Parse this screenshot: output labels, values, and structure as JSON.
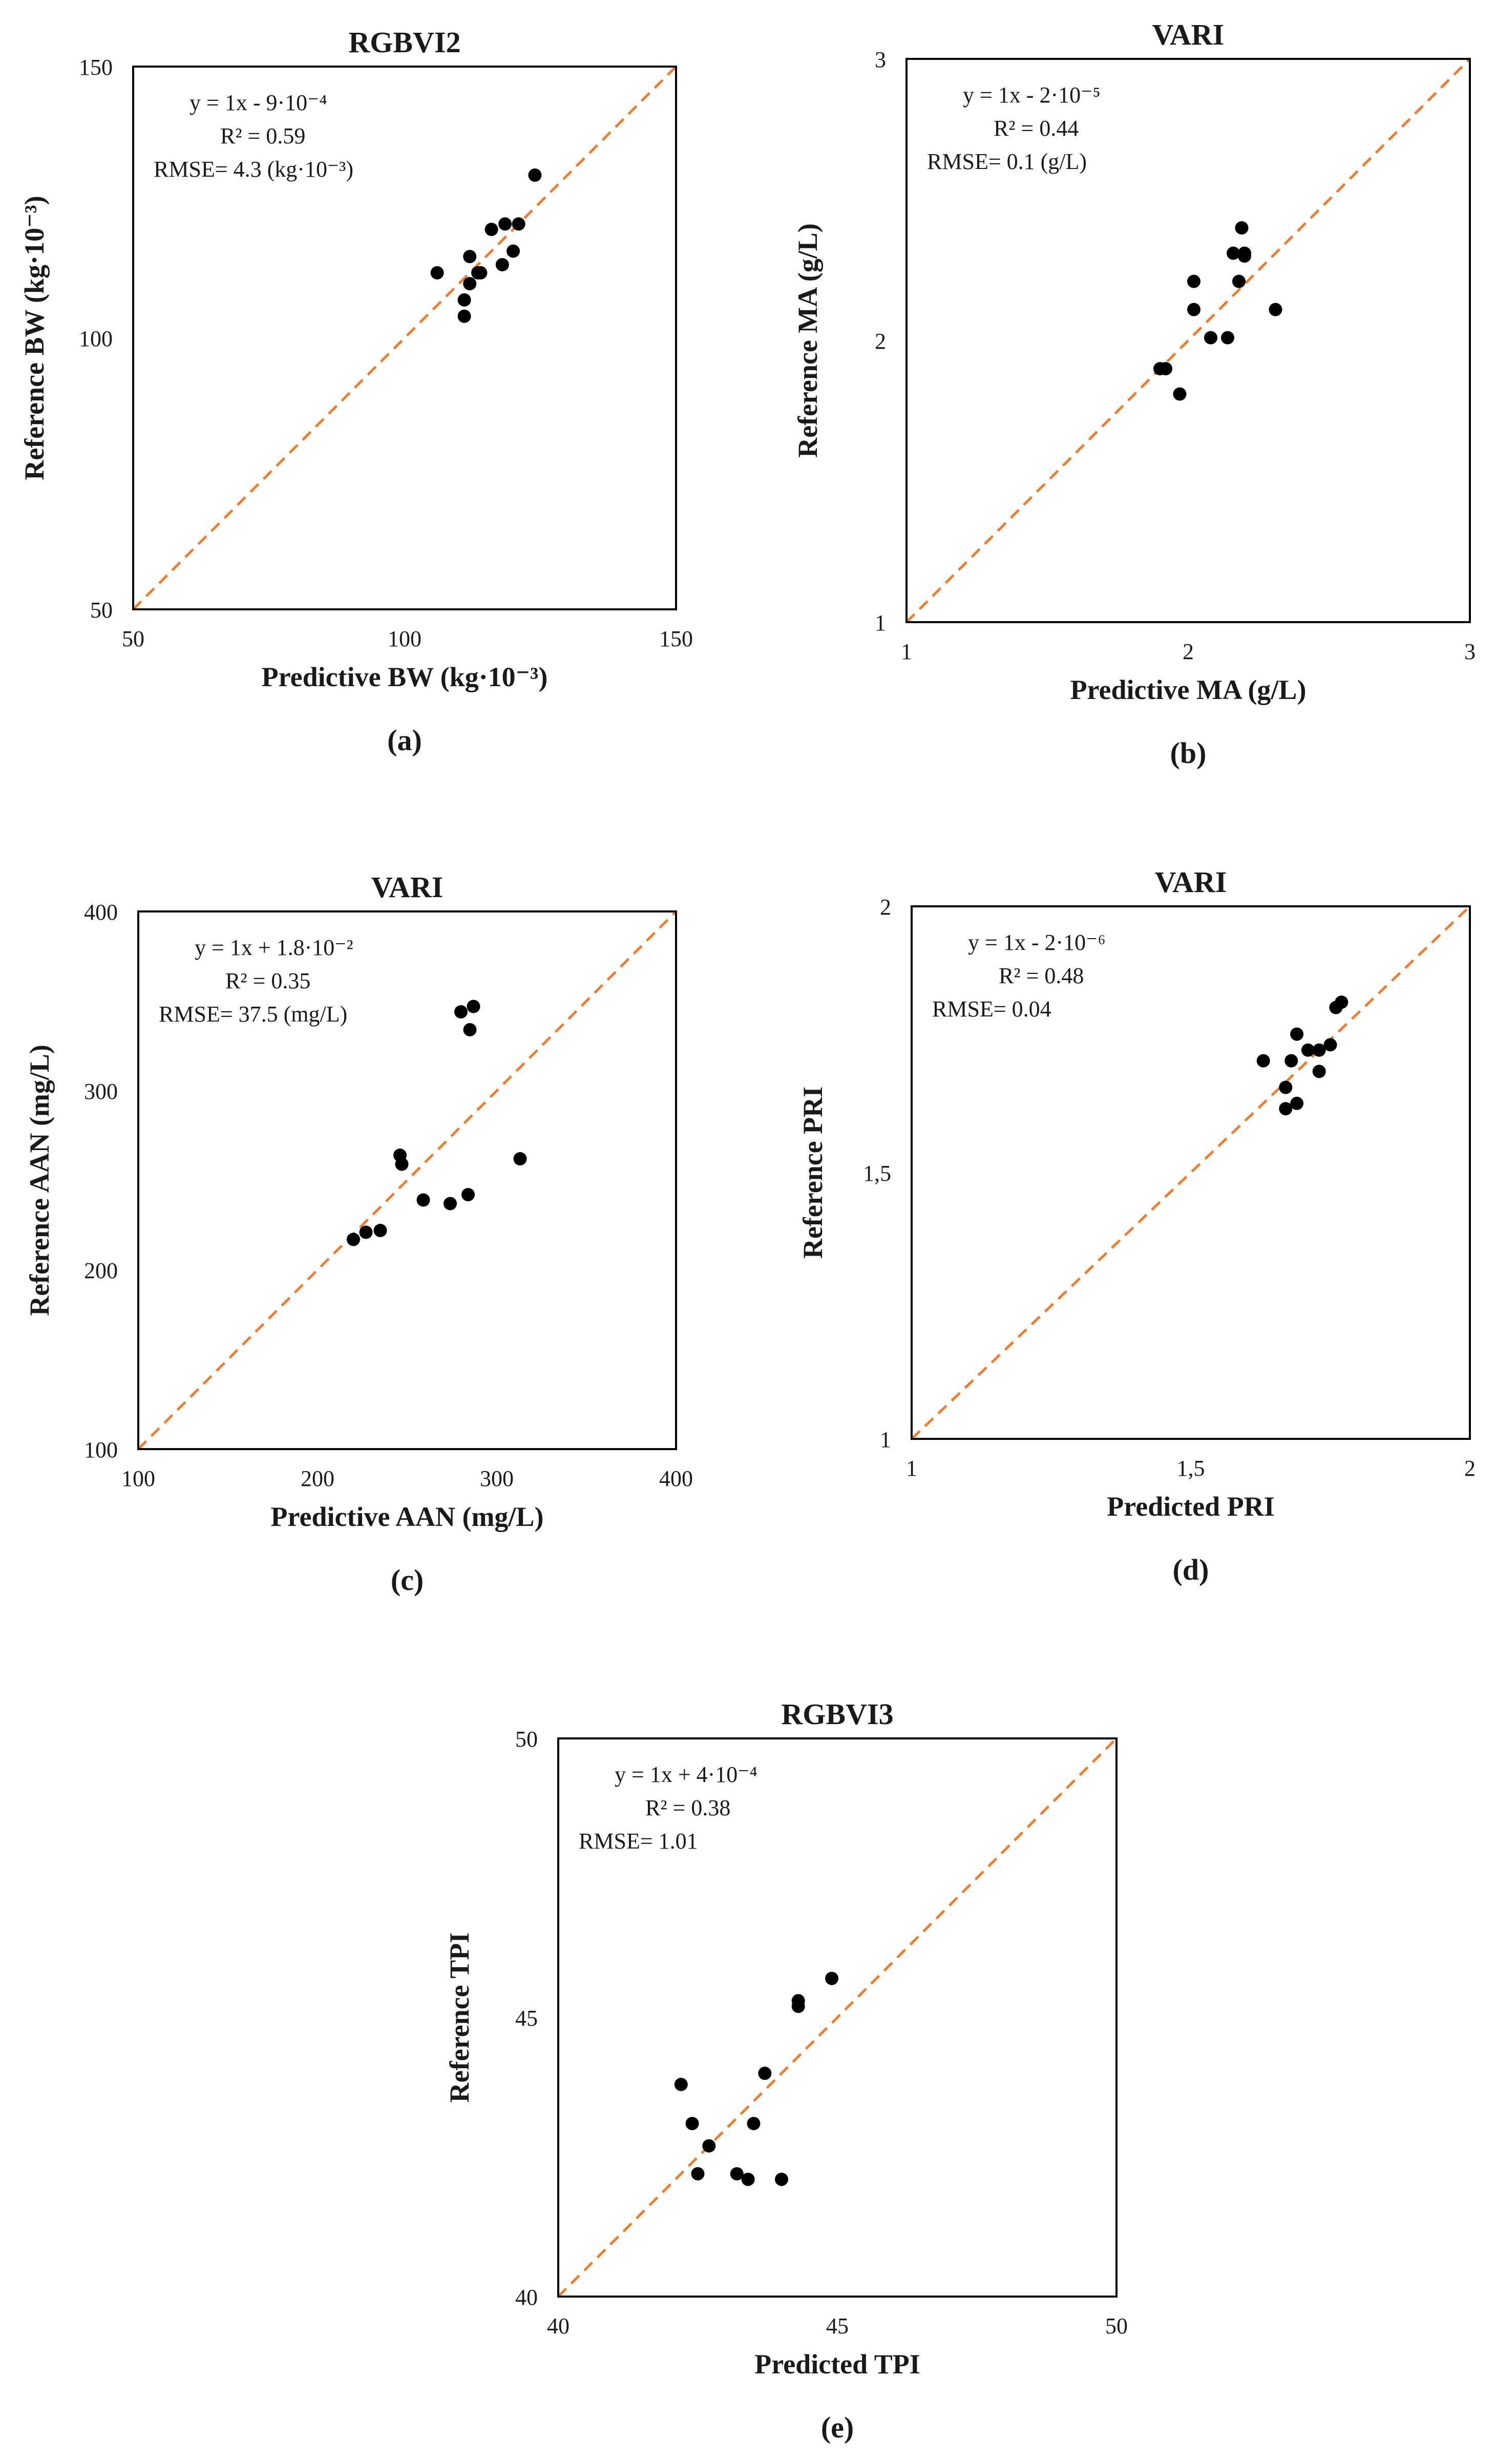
{
  "colors": {
    "reference_line": "#ed7d31",
    "points": "#000000",
    "frame": "#000000"
  },
  "chart_data": [
    {
      "type": "scatter",
      "panel": "(a)",
      "title": "RGBVI2",
      "xlabel": "Predictive BW (kg·10⁻³)",
      "ylabel": "Reference BW (kg·10⁻³)",
      "xlim": [
        50,
        150
      ],
      "ylim": [
        50,
        150
      ],
      "xticks": [
        "50",
        "100",
        "150"
      ],
      "yticks": [
        "50",
        "100",
        "150"
      ],
      "annotations": [
        "y = 1x - 9·10⁻⁴",
        "R² = 0.59",
        "RMSE= 4.3 (kg·10⁻³)"
      ],
      "x": [
        106,
        111,
        111,
        112,
        112,
        113.5,
        114,
        116,
        118,
        118.5,
        120,
        121,
        124
      ],
      "y": [
        112,
        104,
        107,
        110,
        115,
        112,
        112,
        120,
        113.5,
        121,
        116,
        121,
        130
      ]
    },
    {
      "type": "scatter",
      "panel": "(b)",
      "title": "VARI",
      "xlabel": "Predictive MA (g/L)",
      "ylabel": "Reference MA (g/L)",
      "xlim": [
        1,
        3
      ],
      "ylim": [
        1,
        3
      ],
      "xticks": [
        "1",
        "2",
        "3"
      ],
      "yticks": [
        "1",
        "2",
        "3"
      ],
      "annotations": [
        "y = 1x - 2·10⁻⁵",
        "R² = 0.44",
        "RMSE= 0.1 (g/L)"
      ],
      "x": [
        1.9,
        1.92,
        1.97,
        2.02,
        2.02,
        2.08,
        2.14,
        2.16,
        2.18,
        2.19,
        2.2,
        2.2,
        2.31
      ],
      "y": [
        1.9,
        1.9,
        1.81,
        2.11,
        2.21,
        2.01,
        2.01,
        2.31,
        2.21,
        2.4,
        2.31,
        2.3,
        2.11
      ]
    },
    {
      "type": "scatter",
      "panel": "(c)",
      "title": "VARI",
      "xlabel": "Predictive AAN (mg/L)",
      "ylabel": "Reference AAN (mg/L)",
      "xlim": [
        100,
        400
      ],
      "ylim": [
        100,
        400
      ],
      "xticks": [
        "100",
        "200",
        "300",
        "400"
      ],
      "yticks": [
        "100",
        "200",
        "300",
        "400"
      ],
      "annotations": [
        "y = 1x + 1.8·10⁻²",
        "R² = 0.35",
        "RMSE= 37.5 (mg/L)"
      ],
      "x": [
        220,
        227,
        235,
        246,
        247,
        259,
        274,
        280,
        284,
        285,
        287,
        313
      ],
      "y": [
        217,
        221,
        222,
        264,
        259,
        239,
        237,
        344,
        242,
        334,
        347,
        262
      ]
    },
    {
      "type": "scatter",
      "panel": "(d)",
      "title": "VARI",
      "xlabel": "Predicted PRI",
      "ylabel": "Reference PRI",
      "xlim": [
        1,
        2
      ],
      "ylim": [
        1,
        2
      ],
      "xticks": [
        "1",
        "1,5",
        "2"
      ],
      "yticks": [
        "1",
        "1,5",
        "2"
      ],
      "annotations": [
        "y = 1x - 2·10⁻⁶",
        "R² = 0.48",
        "RMSE= 0.04"
      ],
      "x": [
        1.63,
        1.67,
        1.67,
        1.68,
        1.69,
        1.69,
        1.71,
        1.73,
        1.73,
        1.75,
        1.76,
        1.77
      ],
      "y": [
        1.71,
        1.66,
        1.62,
        1.71,
        1.63,
        1.76,
        1.73,
        1.73,
        1.69,
        1.74,
        1.81,
        1.82
      ]
    },
    {
      "type": "scatter",
      "panel": "(e)",
      "title": "RGBVI3",
      "xlabel": "Predicted TPI",
      "ylabel": "Reference TPI",
      "xlim": [
        40,
        50
      ],
      "ylim": [
        40,
        50
      ],
      "xticks": [
        "40",
        "45",
        "50"
      ],
      "yticks": [
        "40",
        "45",
        "50"
      ],
      "annotations": [
        "y = 1x + 4·10⁻⁴",
        "R² = 0.38",
        "RMSE= 1.01"
      ],
      "x": [
        42.2,
        42.4,
        42.5,
        42.7,
        43.2,
        43.4,
        43.5,
        43.7,
        44,
        44.3,
        44.3,
        44.9
      ],
      "y": [
        43.8,
        43.1,
        42.2,
        42.7,
        42.2,
        42.1,
        43.1,
        44,
        42.1,
        45.3,
        45.2,
        45.7
      ]
    }
  ]
}
